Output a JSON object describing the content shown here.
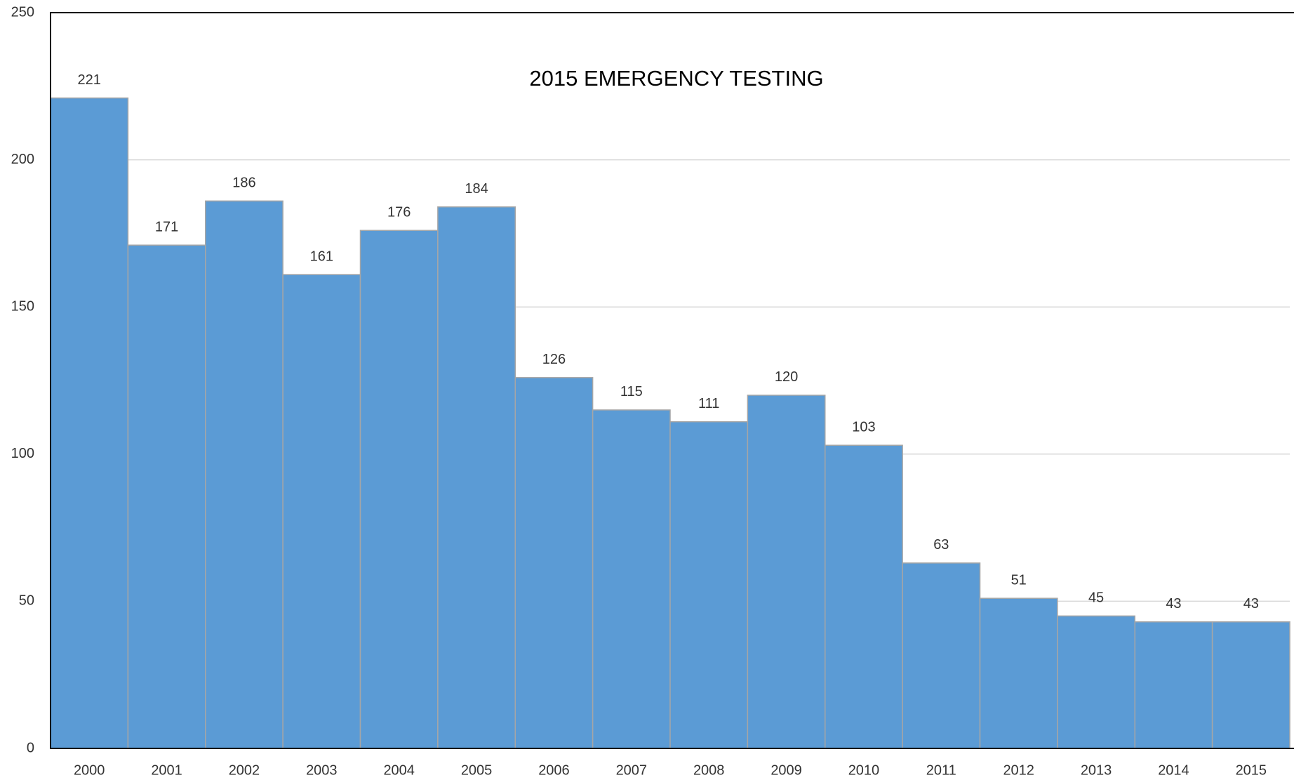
{
  "chart_data": {
    "type": "bar",
    "title": "2015 EMERGENCY TESTING",
    "categories": [
      "2000",
      "2001",
      "2002",
      "2003",
      "2004",
      "2005",
      "2006",
      "2007",
      "2008",
      "2009",
      "2010",
      "2011",
      "2012",
      "2013",
      "2014",
      "2015"
    ],
    "values": [
      221,
      171,
      186,
      161,
      176,
      184,
      126,
      115,
      111,
      120,
      103,
      63,
      51,
      45,
      43,
      43
    ],
    "color": "#5b9bd5",
    "ylim": [
      0,
      250
    ],
    "yticks": [
      0,
      50,
      100,
      150,
      200,
      250
    ],
    "grid": true
  }
}
